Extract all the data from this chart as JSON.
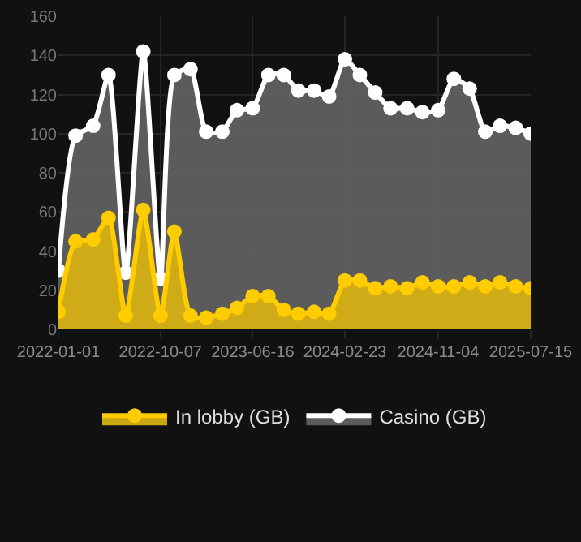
{
  "chart_data": {
    "type": "area",
    "x": [
      "2022-01-01",
      "2022-02-17",
      "2022-04-06",
      "2022-05-18",
      "2022-07-04",
      "2022-08-21",
      "2022-10-07",
      "2022-11-14",
      "2022-12-28",
      "2023-02-09",
      "2023-03-25",
      "2023-05-04",
      "2023-06-16",
      "2023-07-29",
      "2023-09-09",
      "2023-10-19",
      "2023-12-01",
      "2024-01-11",
      "2024-02-23",
      "2024-04-04",
      "2024-05-16",
      "2024-06-27",
      "2024-08-11",
      "2024-09-22",
      "2024-11-04",
      "2024-12-17",
      "2025-01-29",
      "2025-03-13",
      "2025-04-22",
      "2025-06-04",
      "2025-07-15"
    ],
    "series": [
      {
        "name": "In lobby (GB)",
        "color": "#ffcc00",
        "values": [
          9,
          45,
          46,
          57,
          7,
          61,
          7,
          50,
          7,
          6,
          8,
          11,
          17,
          17,
          10,
          8,
          9,
          8,
          25,
          25,
          21,
          22,
          21,
          24,
          22,
          22,
          24,
          22,
          24,
          22,
          21
        ]
      },
      {
        "name": "Casino (GB)",
        "color": "#ffffff",
        "values": [
          30,
          99,
          104,
          130,
          29,
          142,
          26,
          130,
          133,
          101,
          101,
          112,
          113,
          130,
          130,
          122,
          122,
          119,
          138,
          130,
          121,
          113,
          113,
          111,
          112,
          128,
          123,
          101,
          104,
          103,
          100
        ]
      }
    ],
    "xlim": [
      "2022-01-01",
      "2025-07-15"
    ],
    "xticks": [
      "2022-01-01",
      "2022-10-07",
      "2023-06-16",
      "2024-02-23",
      "2024-11-04",
      "2025-07-15"
    ],
    "ylim": [
      0,
      160
    ],
    "yticks": [
      0,
      20,
      40,
      60,
      80,
      100,
      120,
      140,
      160
    ],
    "grid": true,
    "legend": "bottom",
    "marker": "circle",
    "line_style": "solid"
  }
}
